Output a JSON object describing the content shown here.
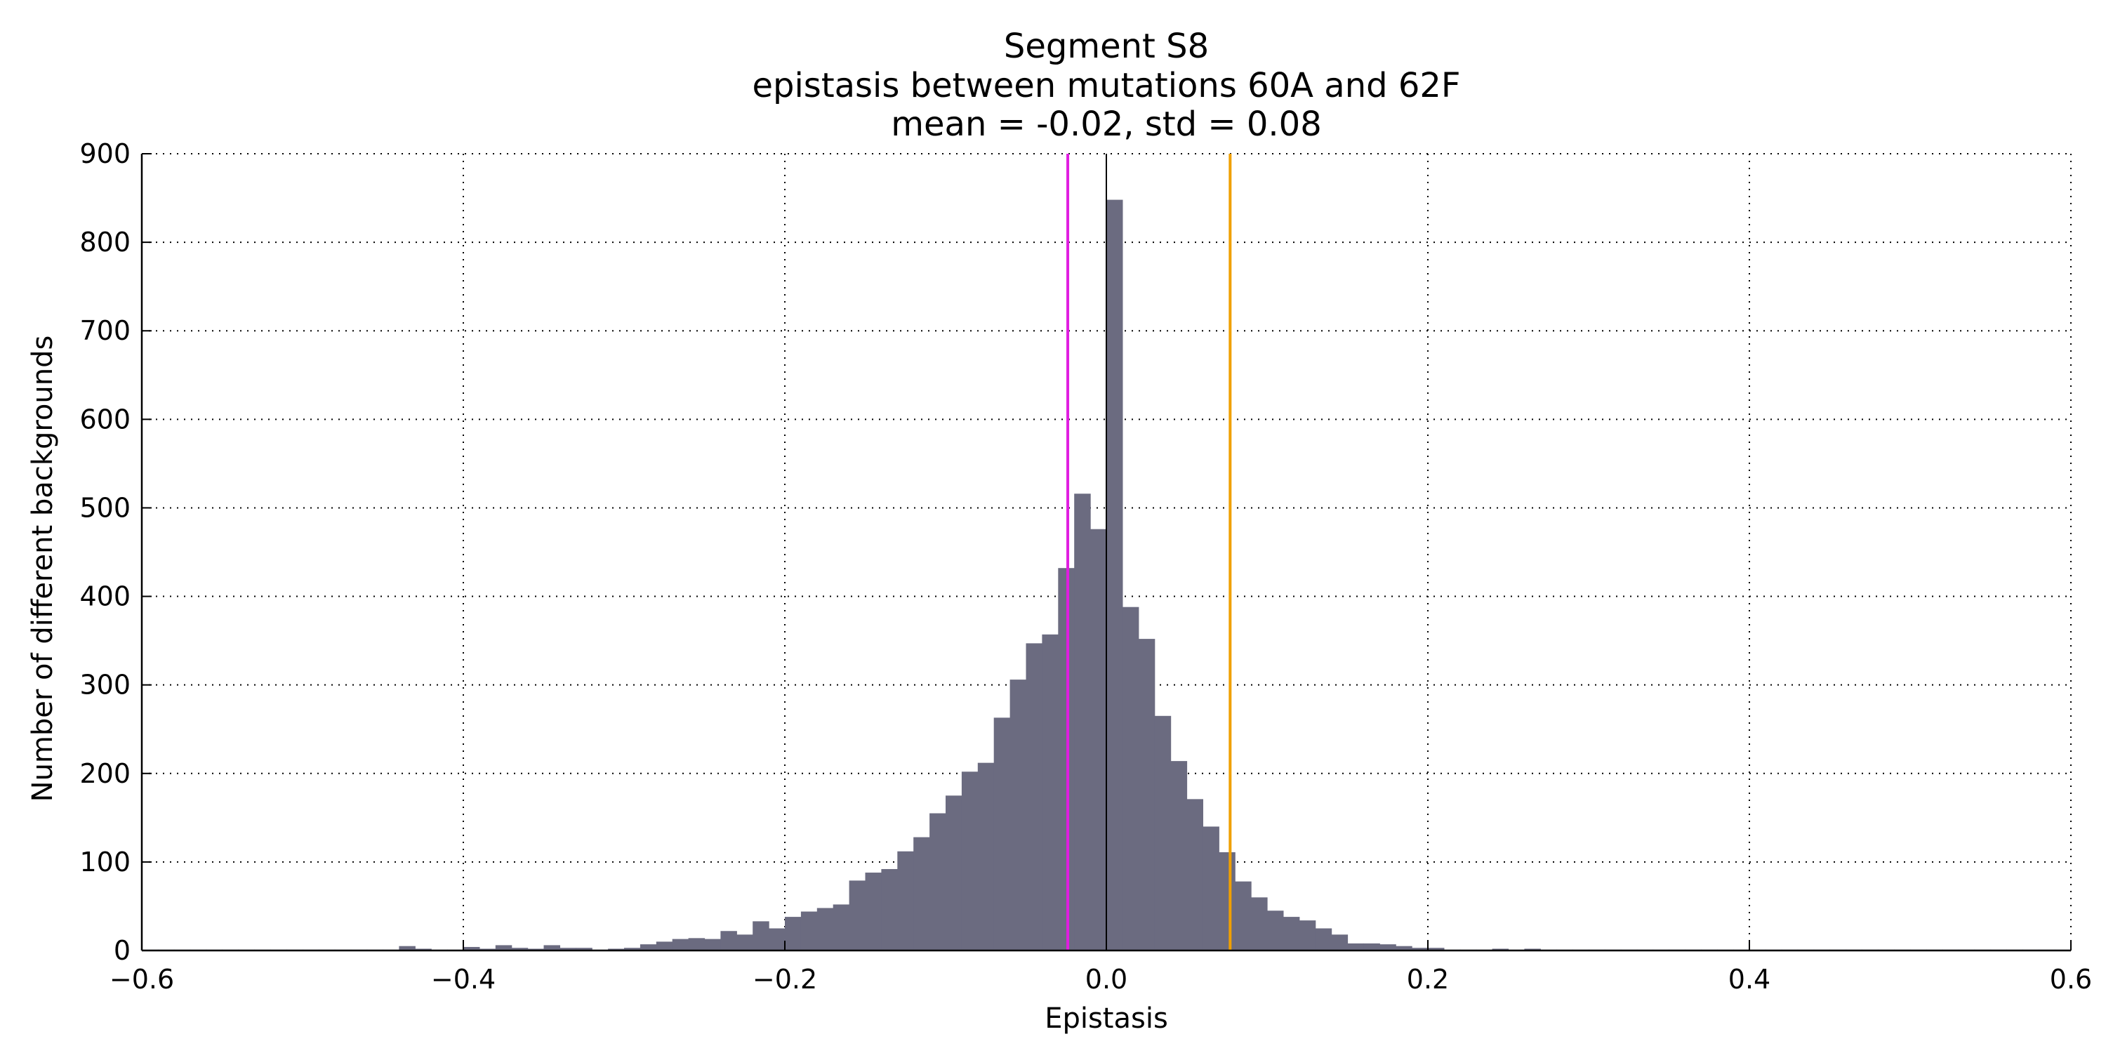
{
  "chart_data": {
    "type": "bar",
    "title": "Segment S8",
    "subtitle": "epistasis between mutations 60A and 62F",
    "stats": "mean = -0.02, std = 0.08",
    "xlabel": "Epistasis",
    "ylabel": "Number of different backgrounds",
    "xlim": [
      -0.6,
      0.6
    ],
    "ylim": [
      0,
      900
    ],
    "xticks": [
      -0.6,
      -0.4,
      -0.2,
      0.0,
      0.2,
      0.4,
      0.6
    ],
    "xtick_labels": [
      "−0.6",
      "−0.4",
      "−0.2",
      "0.0",
      "0.2",
      "0.4",
      "0.6"
    ],
    "yticks": [
      0,
      100,
      200,
      300,
      400,
      500,
      600,
      700,
      800,
      900
    ],
    "ytick_labels": [
      "0",
      "100",
      "200",
      "300",
      "400",
      "500",
      "600",
      "700",
      "800",
      "900"
    ],
    "grid": true,
    "bar_color": "#6b6b80",
    "bin_start": -0.6,
    "bin_width": 0.01,
    "values": [
      1,
      1,
      1,
      1,
      1,
      1,
      1,
      1,
      1,
      1,
      1,
      1,
      1,
      1,
      1,
      1,
      5,
      2,
      1,
      1,
      4,
      2,
      6,
      3,
      2,
      6,
      3,
      3,
      1,
      2,
      3,
      7,
      10,
      13,
      14,
      13,
      22,
      18,
      33,
      25,
      38,
      44,
      48,
      52,
      79,
      88,
      92,
      112,
      128,
      155,
      175,
      202,
      212,
      263,
      306,
      347,
      357,
      432,
      516,
      476,
      848,
      388,
      352,
      265,
      214,
      171,
      140,
      111,
      78,
      60,
      45,
      38,
      34,
      25,
      18,
      8,
      8,
      7,
      5,
      3,
      3,
      1,
      1,
      1,
      2,
      1,
      2,
      1,
      1,
      1,
      1,
      1,
      1,
      1,
      1,
      1,
      1,
      1,
      1,
      1,
      1,
      1,
      1,
      1,
      1,
      1,
      1,
      1,
      1,
      1,
      1,
      1,
      1,
      1,
      1,
      1,
      1,
      1,
      1,
      1
    ],
    "vlines": [
      {
        "x": -0.024,
        "color": "#e01ee0"
      },
      {
        "x": 0.0,
        "color": "#000000"
      },
      {
        "x": 0.077,
        "color": "#f0a000"
      }
    ]
  }
}
